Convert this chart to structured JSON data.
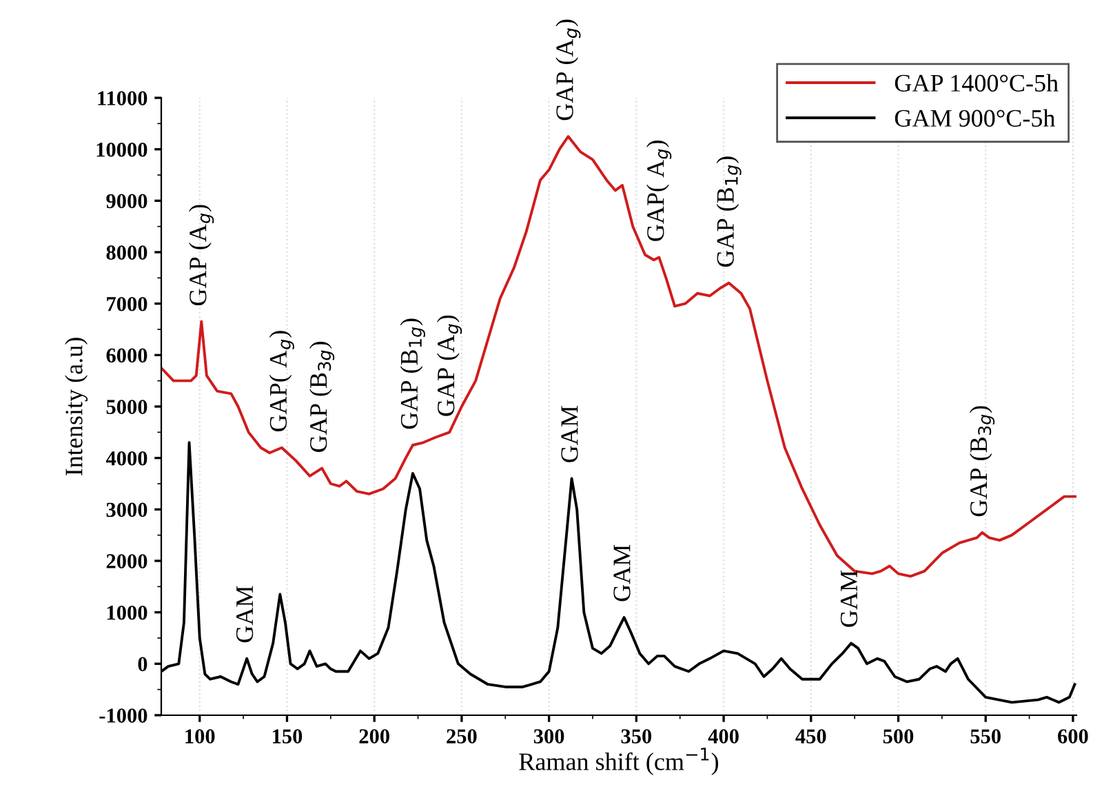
{
  "chart_data": {
    "type": "line",
    "xlabel": "Raman shift (cm$^{−1}$)",
    "ylabel": "Intensity (a.u)",
    "xlim": [
      78,
      602
    ],
    "ylim": [
      -1000,
      11000
    ],
    "xticks": [
      100,
      150,
      200,
      250,
      300,
      350,
      400,
      450,
      500,
      550,
      600
    ],
    "yticks": [
      -1000,
      0,
      1000,
      2000,
      3000,
      4000,
      5000,
      6000,
      7000,
      8000,
      9000,
      10000,
      11000
    ],
    "grid": "x",
    "legend": "top right",
    "line_style": "solid",
    "marker": "none",
    "series": [
      {
        "name": "GAP 1400°C-5h",
        "color": "#d01c1c",
        "x": [
          78,
          85,
          90,
          95,
          98,
          101,
          104,
          110,
          118,
          122,
          128,
          135,
          140,
          147,
          155,
          163,
          170,
          175,
          180,
          184,
          190,
          197,
          205,
          212,
          218,
          222,
          228,
          235,
          243,
          250,
          258,
          265,
          272,
          280,
          287,
          295,
          300,
          306,
          311,
          318,
          325,
          333,
          338,
          342,
          348,
          355,
          360,
          363,
          367,
          372,
          378,
          385,
          392,
          398,
          403,
          410,
          415,
          425,
          435,
          445,
          455,
          465,
          475,
          485,
          490,
          495,
          500,
          507,
          515,
          525,
          535,
          545,
          548,
          552,
          558,
          565,
          575,
          585,
          595,
          602
        ],
        "values": [
          5750,
          5500,
          5500,
          5500,
          5600,
          6650,
          5600,
          5300,
          5250,
          5000,
          4500,
          4200,
          4100,
          4200,
          3950,
          3650,
          3800,
          3500,
          3450,
          3550,
          3350,
          3300,
          3400,
          3600,
          4000,
          4250,
          4300,
          4400,
          4500,
          5000,
          5500,
          6300,
          7100,
          7700,
          8400,
          9400,
          9600,
          10000,
          10250,
          9950,
          9800,
          9400,
          9200,
          9300,
          8500,
          7950,
          7850,
          7900,
          7500,
          6950,
          7000,
          7200,
          7150,
          7300,
          7400,
          7200,
          6900,
          5500,
          4200,
          3400,
          2700,
          2100,
          1800,
          1750,
          1800,
          1900,
          1750,
          1700,
          1800,
          2150,
          2350,
          2450,
          2550,
          2450,
          2400,
          2500,
          2750,
          3000,
          3250,
          3250
        ]
      },
      {
        "name": "GAM 900°C-5h",
        "color": "#000000",
        "x": [
          78,
          82,
          88,
          91,
          94,
          97,
          100,
          103,
          106,
          112,
          118,
          122,
          125,
          127,
          130,
          133,
          137,
          142,
          146,
          149,
          152,
          156,
          160,
          163,
          167,
          172,
          175,
          178,
          185,
          192,
          197,
          202,
          208,
          213,
          218,
          222,
          226,
          230,
          234,
          240,
          248,
          255,
          265,
          275,
          285,
          295,
          300,
          305,
          310,
          313,
          316,
          320,
          325,
          330,
          335,
          340,
          343,
          347,
          352,
          357,
          362,
          366,
          372,
          380,
          386,
          392,
          400,
          408,
          413,
          418,
          423,
          428,
          433,
          438,
          445,
          455,
          462,
          468,
          473,
          477,
          482,
          488,
          492,
          498,
          505,
          512,
          518,
          522,
          527,
          530,
          534,
          540,
          550,
          565,
          580,
          585,
          592,
          598,
          601
        ],
        "values": [
          -150,
          -50,
          0,
          800,
          4300,
          2500,
          500,
          -200,
          -300,
          -250,
          -350,
          -400,
          -100,
          100,
          -200,
          -350,
          -250,
          400,
          1350,
          800,
          0,
          -100,
          0,
          250,
          -50,
          0,
          -100,
          -150,
          -150,
          250,
          100,
          200,
          700,
          1800,
          3000,
          3700,
          3400,
          2400,
          1900,
          800,
          0,
          -200,
          -400,
          -450,
          -450,
          -350,
          -150,
          700,
          2500,
          3600,
          3000,
          1000,
          300,
          200,
          350,
          700,
          900,
          600,
          200,
          0,
          150,
          150,
          -50,
          -150,
          0,
          100,
          250,
          200,
          100,
          0,
          -250,
          -100,
          100,
          -100,
          -300,
          -300,
          0,
          200,
          400,
          300,
          0,
          100,
          50,
          -250,
          -350,
          -300,
          -100,
          -50,
          -150,
          0,
          100,
          -300,
          -650,
          -750,
          -700,
          -650,
          -750,
          -650,
          -400
        ]
      }
    ],
    "annotations": [
      {
        "text": "GAP (A$_{g}$)",
        "x": 101,
        "y": 6650
      },
      {
        "text": "GAP( A$_{g}$)",
        "x": 147,
        "y": 4200
      },
      {
        "text": "GAP (B$_{3g}$)",
        "x": 170,
        "y": 3800
      },
      {
        "text": "GAP (B$_{1g}$)",
        "x": 222,
        "y": 4250
      },
      {
        "text": "GAP (A$_{g}$)",
        "x": 243,
        "y": 4500
      },
      {
        "text": "GAP (A$_{g}$)",
        "x": 311,
        "y": 10250
      },
      {
        "text": "GAM",
        "x": 313,
        "y": 3600
      },
      {
        "text": "GAP( A$_{g}$)",
        "x": 363,
        "y": 7900
      },
      {
        "text": "GAP (B$_{1g}$)",
        "x": 403,
        "y": 7400
      },
      {
        "text": "GAM",
        "x": 127,
        "y": 100
      },
      {
        "text": "GAM",
        "x": 343,
        "y": 900
      },
      {
        "text": "GAM",
        "x": 473,
        "y": 400
      },
      {
        "text": "GAP (B$_{3g}$)",
        "x": 548,
        "y": 2550
      }
    ]
  }
}
